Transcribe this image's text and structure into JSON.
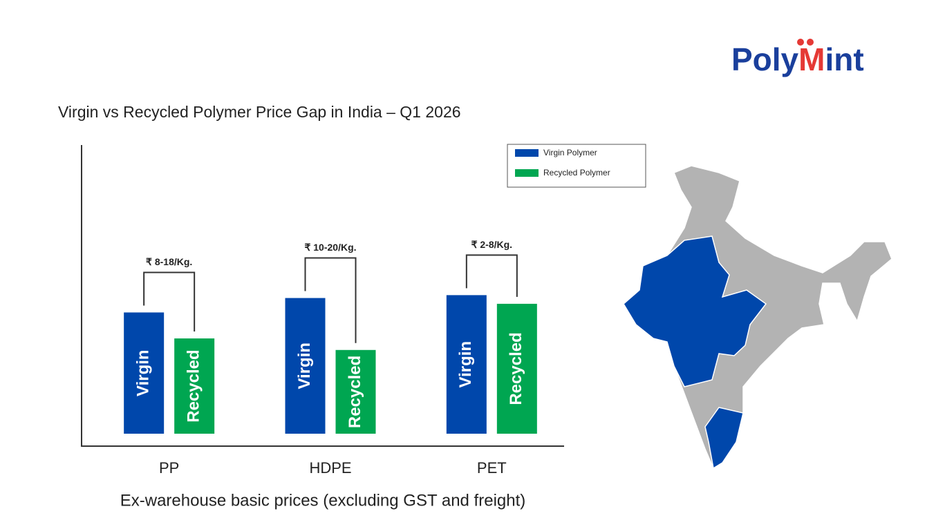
{
  "logo": [
    "Poly",
    "M",
    "int"
  ],
  "chart_data": {
    "type": "bar",
    "title": "Virgin vs Recycled Polymer Price Gap in India – Q1 2026",
    "categories": [
      "PP",
      "HDPE",
      "PET"
    ],
    "series": [
      {
        "name": "Virgin Polymer",
        "label": "Virgin",
        "color": "#0047ab",
        "values": [
          42,
          47,
          48
        ]
      },
      {
        "name": "Recycled Polymer",
        "label": "Recycled",
        "color": "#00a651",
        "values": [
          33,
          29,
          45
        ]
      }
    ],
    "gap_labels": [
      "₹ 8-18/Kg.",
      "₹ 10-20/Kg.",
      "₹ 2-8/Kg."
    ],
    "caption": "Ex-warehouse basic prices (excluding GST and freight)",
    "ylim": [
      0,
      100
    ],
    "legend": "top-right"
  }
}
